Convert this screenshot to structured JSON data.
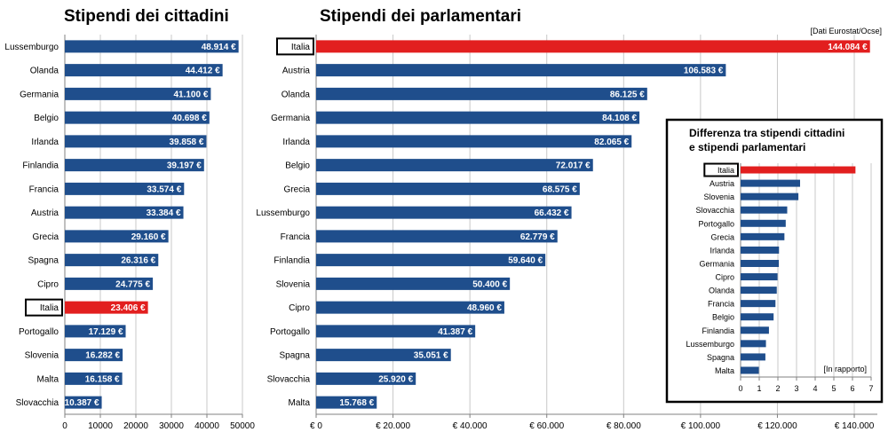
{
  "source_note": "[Dati Eurostat/Ocse]",
  "colors": {
    "bar": "#1f4e8c",
    "highlight": "#e21f1f",
    "grid": "#c8c8c8",
    "axis": "#808080"
  },
  "chart_data": [
    {
      "type": "bar",
      "orientation": "horizontal",
      "title": "Stipendi dei cittadini",
      "highlight": "Italia",
      "categories": [
        "Lussemburgo",
        "Olanda",
        "Germania",
        "Belgio",
        "Irlanda",
        "Finlandia",
        "Francia",
        "Austria",
        "Grecia",
        "Spagna",
        "Cipro",
        "Italia",
        "Portogallo",
        "Slovenia",
        "Malta",
        "Slovacchia"
      ],
      "values": [
        48914,
        44412,
        41100,
        40698,
        39858,
        39197,
        33574,
        33384,
        29160,
        26316,
        24775,
        23406,
        17129,
        16282,
        16158,
        10387
      ],
      "value_labels": [
        "48.914 €",
        "44.412 €",
        "41.100 €",
        "40.698 €",
        "39.858 €",
        "39.197 €",
        "33.574 €",
        "33.384 €",
        "29.160 €",
        "26.316 €",
        "24.775 €",
        "23.406 €",
        "17.129 €",
        "16.282 €",
        "16.158 €",
        "10.387 €"
      ],
      "xlim": [
        0,
        50000
      ],
      "x_ticks": [
        0,
        10000,
        20000,
        30000,
        40000,
        50000
      ],
      "x_tick_labels": [
        "0",
        "10000",
        "20000",
        "30000",
        "40000",
        "50000"
      ],
      "grid": true
    },
    {
      "type": "bar",
      "orientation": "horizontal",
      "title": "Stipendi dei parlamentari",
      "highlight": "Italia",
      "categories": [
        "Italia",
        "Austria",
        "Olanda",
        "Germania",
        "Irlanda",
        "Belgio",
        "Grecia",
        "Lussemburgo",
        "Francia",
        "Finlandia",
        "Slovenia",
        "Cipro",
        "Portogallo",
        "Spagna",
        "Slovacchia",
        "Malta"
      ],
      "values": [
        144084,
        106583,
        86125,
        84108,
        82065,
        72017,
        68575,
        66432,
        62779,
        59640,
        50400,
        48960,
        41387,
        35051,
        25920,
        15768
      ],
      "value_labels": [
        "144.084 €",
        "106.583 €",
        "86.125 €",
        "84.108 €",
        "82.065 €",
        "72.017 €",
        "68.575 €",
        "66.432 €",
        "62.779 €",
        "59.640 €",
        "50.400 €",
        "48.960 €",
        "41.387 €",
        "35.051 €",
        "25.920 €",
        "15.768 €"
      ],
      "xlim": [
        0,
        146000
      ],
      "x_ticks": [
        0,
        20000,
        40000,
        60000,
        80000,
        100000,
        120000,
        140000
      ],
      "x_tick_labels": [
        "€ 0",
        "€ 20.000",
        "€ 40.000",
        "€ 60.000",
        "€ 80.000",
        "€ 100.000",
        "€ 120.000",
        "€ 140.000"
      ],
      "grid": true
    },
    {
      "type": "bar",
      "orientation": "horizontal",
      "title": "Differenza tra stipendi cittadini e stipendi parlamentari",
      "title_lines": [
        "Differenza tra stipendi cittadini",
        "e stipendi parlamentari"
      ],
      "highlight": "Italia",
      "unit_note": "[In rapporto]",
      "categories": [
        "Italia",
        "Austria",
        "Slovenia",
        "Slovacchia",
        "Portogallo",
        "Grecia",
        "Irlanda",
        "Germania",
        "Cipro",
        "Olanda",
        "Francia",
        "Belgio",
        "Finlandia",
        "Lussemburgo",
        "Spagna",
        "Malta"
      ],
      "values": [
        6.16,
        3.19,
        3.1,
        2.5,
        2.42,
        2.35,
        2.06,
        2.05,
        1.98,
        1.94,
        1.87,
        1.77,
        1.52,
        1.36,
        1.33,
        0.98
      ],
      "xlim": [
        0,
        7
      ],
      "x_ticks": [
        0,
        1,
        2,
        3,
        4,
        5,
        6,
        7
      ],
      "x_tick_labels": [
        "0",
        "1",
        "2",
        "3",
        "4",
        "5",
        "6",
        "7"
      ],
      "grid": true
    }
  ]
}
